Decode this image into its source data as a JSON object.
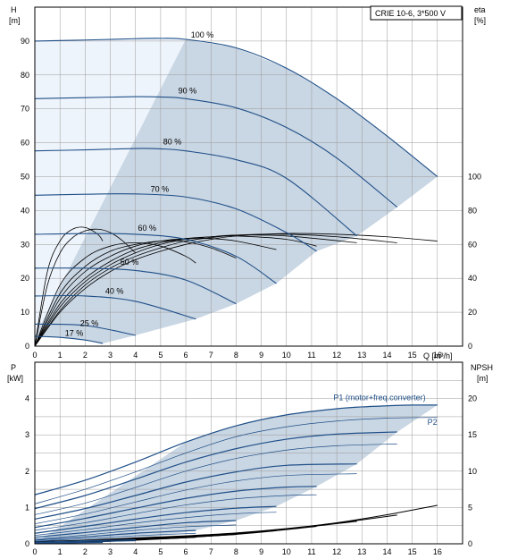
{
  "chart_data": [
    {
      "type": "line",
      "title": "CRIE 10-6, 3*500 V",
      "y_label": "H",
      "y_unit": "[m]",
      "y2_label": "eta",
      "y2_unit": "[%]",
      "x_label": "Q [m³/h]",
      "xlim": [
        0,
        17
      ],
      "ylim": [
        0,
        100
      ],
      "y2lim": [
        0,
        200
      ],
      "x_ticks": [
        "0",
        "1",
        "2",
        "3",
        "4",
        "5",
        "6",
        "7",
        "8",
        "9",
        "10",
        "11",
        "12",
        "13",
        "14",
        "15",
        "16"
      ],
      "y_ticks": [
        "0",
        "10",
        "20",
        "30",
        "40",
        "50",
        "60",
        "70",
        "80",
        "90"
      ],
      "y2_ticks": [
        "0",
        "20",
        "40",
        "60",
        "80",
        "100"
      ],
      "grid": true,
      "colors": {
        "head": "#1f4f88",
        "eta": "#000000",
        "region": "#c9d6e3",
        "region_light": "#eef4fb"
      },
      "speed_labels": [
        {
          "text": "100 %",
          "x": 6.2,
          "y": 91
        },
        {
          "text": "90 %",
          "x": 5.7,
          "y": 74.5
        },
        {
          "text": "80 %",
          "x": 5.1,
          "y": 59.5
        },
        {
          "text": "70 %",
          "x": 4.6,
          "y": 45.5
        },
        {
          "text": "60 %",
          "x": 4.1,
          "y": 34
        },
        {
          "text": "50 %",
          "x": 3.4,
          "y": 24
        },
        {
          "text": "40 %",
          "x": 2.8,
          "y": 15.5
        },
        {
          "text": "25 %",
          "x": 1.8,
          "y": 6
        },
        {
          "text": "17 %",
          "x": 1.2,
          "y": 3
        }
      ],
      "series": [
        {
          "speed": 100,
          "x": [
            0,
            2,
            4,
            5,
            6,
            8,
            10,
            12,
            14,
            16
          ],
          "y": [
            90,
            90.3,
            90.7,
            90.8,
            90.5,
            88,
            82,
            73,
            62,
            50
          ]
        },
        {
          "speed": 90,
          "x": [
            0,
            2,
            4,
            5,
            6,
            8,
            10,
            12,
            14.4
          ],
          "y": [
            73,
            73.3,
            73.6,
            73.5,
            73,
            70.3,
            64.5,
            55.5,
            41
          ]
        },
        {
          "speed": 80,
          "x": [
            0,
            2,
            4,
            5,
            6,
            8,
            10,
            12.8
          ],
          "y": [
            57.6,
            57.9,
            58.3,
            58.2,
            57.6,
            55,
            49.5,
            32.5
          ]
        },
        {
          "speed": 70,
          "x": [
            0,
            2,
            4,
            6,
            8,
            10,
            11.2
          ],
          "y": [
            44.5,
            44.8,
            44.9,
            44,
            40.5,
            33.5,
            28
          ]
        },
        {
          "speed": 60,
          "x": [
            0,
            2,
            4,
            6,
            8,
            9.6
          ],
          "y": [
            33,
            33.2,
            33,
            31.5,
            26.5,
            18.5
          ]
        },
        {
          "speed": 50,
          "x": [
            0,
            2,
            4,
            6,
            8
          ],
          "y": [
            23,
            23,
            22.3,
            19.5,
            12.5
          ]
        },
        {
          "speed": 40,
          "x": [
            0,
            2,
            4,
            6.4
          ],
          "y": [
            14.8,
            14.8,
            13.2,
            8
          ]
        },
        {
          "speed": 25,
          "x": [
            0,
            2,
            4
          ],
          "y": [
            6.5,
            6.1,
            3.2
          ]
        },
        {
          "speed": 17,
          "x": [
            0,
            1,
            2,
            2.7
          ],
          "y": [
            2.9,
            2.6,
            1.8,
            0.8
          ]
        }
      ],
      "eta_series": [
        {
          "x": [
            0,
            1,
            2,
            3,
            4,
            5,
            6,
            7,
            8,
            10,
            12,
            14,
            16
          ],
          "y": [
            0,
            20,
            34,
            44,
            51,
            56,
            60,
            63,
            65,
            66.5,
            66,
            64.5,
            62
          ]
        },
        {
          "x": [
            0,
            1,
            2,
            3,
            4,
            5,
            6,
            7,
            8,
            10,
            12,
            14.4
          ],
          "y": [
            0,
            21,
            36,
            46,
            53,
            58,
            62,
            64,
            65.5,
            66,
            64.5,
            61
          ]
        },
        {
          "x": [
            0,
            1,
            2,
            3,
            4,
            5,
            6,
            7,
            8,
            10,
            12.8
          ],
          "y": [
            0,
            23,
            38,
            48,
            55,
            60,
            63,
            64.5,
            65.5,
            65,
            61
          ]
        },
        {
          "x": [
            0,
            1,
            2,
            3,
            4,
            5,
            6,
            7,
            8,
            10,
            11.2
          ],
          "y": [
            0,
            25,
            40,
            50,
            57,
            61,
            63.5,
            64.5,
            65,
            63,
            59
          ]
        },
        {
          "x": [
            0,
            1,
            2,
            3,
            4,
            5,
            6,
            7,
            8,
            9.6
          ],
          "y": [
            0,
            28,
            44,
            53,
            59,
            62,
            63.5,
            63.5,
            62,
            57
          ]
        },
        {
          "x": [
            0,
            1,
            2,
            3,
            4,
            5,
            6,
            7,
            8
          ],
          "y": [
            0,
            31,
            47,
            56,
            60,
            62,
            61.5,
            58,
            52
          ]
        },
        {
          "x": [
            0,
            1,
            2,
            3,
            4,
            5,
            6,
            6.4
          ],
          "y": [
            0,
            36,
            52,
            59,
            61,
            59,
            53,
            49
          ]
        },
        {
          "x": [
            0,
            0.5,
            1,
            1.5,
            2,
            2.5,
            3,
            3.5,
            4
          ],
          "y": [
            0,
            36,
            55,
            64,
            68,
            69,
            67,
            62,
            55
          ]
        },
        {
          "x": [
            0,
            0.5,
            1,
            1.5,
            2,
            2.5,
            2.7
          ],
          "y": [
            0,
            44,
            62,
            69,
            70,
            66,
            62
          ]
        }
      ]
    },
    {
      "type": "line",
      "y_label": "P",
      "y_unit": "[kW]",
      "y2_label": "NPSH",
      "y2_unit": "[m]",
      "xlim": [
        0,
        17
      ],
      "ylim": [
        0,
        5
      ],
      "y2lim": [
        0,
        25
      ],
      "x_ticks": [
        "0",
        "1",
        "2",
        "3",
        "4",
        "5",
        "6",
        "7",
        "8",
        "9",
        "10",
        "11",
        "12",
        "13",
        "14",
        "15",
        "16"
      ],
      "y_ticks": [
        "0",
        "1",
        "2",
        "3",
        "4"
      ],
      "y2_ticks": [
        "0",
        "5",
        "10",
        "15",
        "20"
      ],
      "grid": true,
      "annotations": [
        {
          "text": "P1 (motor+freq.converter)",
          "x": 13.7,
          "y": 3.95
        },
        {
          "text": "P2",
          "x": 15.8,
          "y": 3.28
        }
      ],
      "p1_series": [
        {
          "x": [
            0,
            2,
            4,
            6,
            8,
            10,
            12,
            13,
            14,
            15,
            16
          ],
          "y": [
            1.35,
            1.75,
            2.25,
            2.8,
            3.25,
            3.55,
            3.72,
            3.77,
            3.8,
            3.82,
            3.82
          ]
        },
        {
          "x": [
            0,
            2,
            4,
            6,
            8,
            10,
            12,
            14.4
          ],
          "y": [
            0.97,
            1.33,
            1.78,
            2.25,
            2.62,
            2.88,
            3.02,
            3.08
          ]
        },
        {
          "x": [
            0,
            2,
            4,
            6,
            8,
            10,
            12.8
          ],
          "y": [
            0.68,
            0.97,
            1.33,
            1.7,
            1.98,
            2.16,
            2.2
          ]
        },
        {
          "x": [
            0,
            2,
            4,
            6,
            8,
            10,
            11.2
          ],
          "y": [
            0.45,
            0.7,
            0.98,
            1.25,
            1.45,
            1.56,
            1.58
          ]
        },
        {
          "x": [
            0,
            2,
            4,
            6,
            8,
            9.6
          ],
          "y": [
            0.29,
            0.48,
            0.68,
            0.86,
            0.98,
            1.03
          ]
        },
        {
          "x": [
            0,
            2,
            4,
            6,
            8
          ],
          "y": [
            0.18,
            0.31,
            0.45,
            0.58,
            0.64
          ]
        },
        {
          "x": [
            0,
            2,
            4,
            6.4
          ],
          "y": [
            0.1,
            0.19,
            0.29,
            0.37
          ]
        },
        {
          "x": [
            0,
            2,
            4
          ],
          "y": [
            0.04,
            0.08,
            0.11
          ]
        },
        {
          "x": [
            0,
            1,
            2.7
          ],
          "y": [
            0.02,
            0.035,
            0.05
          ]
        }
      ],
      "p2_series": [
        {
          "x": [
            0,
            2,
            4,
            6,
            8,
            10,
            12,
            14,
            16
          ],
          "y": [
            1.1,
            1.5,
            1.98,
            2.5,
            2.95,
            3.22,
            3.38,
            3.46,
            3.48
          ]
        },
        {
          "x": [
            0,
            2,
            4,
            6,
            8,
            10,
            12,
            14.4
          ],
          "y": [
            0.8,
            1.12,
            1.55,
            2.0,
            2.35,
            2.58,
            2.7,
            2.75
          ]
        },
        {
          "x": [
            0,
            2,
            4,
            6,
            8,
            10,
            12.8
          ],
          "y": [
            0.55,
            0.82,
            1.15,
            1.48,
            1.73,
            1.88,
            1.93
          ]
        },
        {
          "x": [
            0,
            2,
            4,
            6,
            8,
            10,
            11.2
          ],
          "y": [
            0.37,
            0.58,
            0.83,
            1.07,
            1.24,
            1.33,
            1.35
          ]
        },
        {
          "x": [
            0,
            2,
            4,
            6,
            8,
            9.6
          ],
          "y": [
            0.23,
            0.39,
            0.57,
            0.72,
            0.83,
            0.87
          ]
        },
        {
          "x": [
            0,
            2,
            4,
            6,
            8
          ],
          "y": [
            0.13,
            0.24,
            0.37,
            0.47,
            0.52
          ]
        },
        {
          "x": [
            0,
            2,
            4,
            6.4
          ],
          "y": [
            0.07,
            0.14,
            0.22,
            0.29
          ]
        },
        {
          "x": [
            0,
            2,
            4
          ],
          "y": [
            0.02,
            0.05,
            0.08
          ]
        },
        {
          "x": [
            0,
            1,
            2.7
          ],
          "y": [
            0.01,
            0.02,
            0.03
          ]
        }
      ],
      "npsh_series": [
        {
          "x": [
            0,
            2,
            4,
            6,
            8,
            10,
            12,
            14,
            16
          ],
          "y": [
            0.3,
            0.5,
            0.8,
            1.1,
            1.5,
            2.1,
            2.9,
            4.0,
            5.3
          ]
        },
        {
          "x": [
            0,
            2,
            4,
            6,
            8,
            10,
            12,
            14.4
          ],
          "y": [
            0.25,
            0.45,
            0.75,
            1.05,
            1.45,
            2.05,
            2.85,
            3.95
          ]
        },
        {
          "x": [
            0,
            2,
            4,
            6,
            8,
            10,
            12.8
          ],
          "y": [
            0.2,
            0.4,
            0.7,
            1.0,
            1.4,
            2.0,
            3.1
          ]
        },
        {
          "x": [
            0,
            2,
            4,
            6,
            8,
            10,
            11.2
          ],
          "y": [
            0.2,
            0.4,
            0.65,
            0.95,
            1.35,
            1.95,
            2.4
          ]
        },
        {
          "x": [
            0,
            2,
            4,
            6,
            8,
            9.6
          ],
          "y": [
            0.15,
            0.35,
            0.6,
            0.9,
            1.3,
            1.8
          ]
        },
        {
          "x": [
            0,
            2,
            4,
            6,
            8
          ],
          "y": [
            0.1,
            0.3,
            0.55,
            0.85,
            1.3
          ]
        },
        {
          "x": [
            0,
            2,
            4,
            6.4
          ],
          "y": [
            0.1,
            0.25,
            0.5,
            0.9
          ]
        },
        {
          "x": [
            0,
            2,
            4
          ],
          "y": [
            0.05,
            0.2,
            0.5
          ]
        },
        {
          "x": [
            0,
            1,
            2.7
          ],
          "y": [
            0.05,
            0.1,
            0.3
          ]
        }
      ]
    }
  ]
}
